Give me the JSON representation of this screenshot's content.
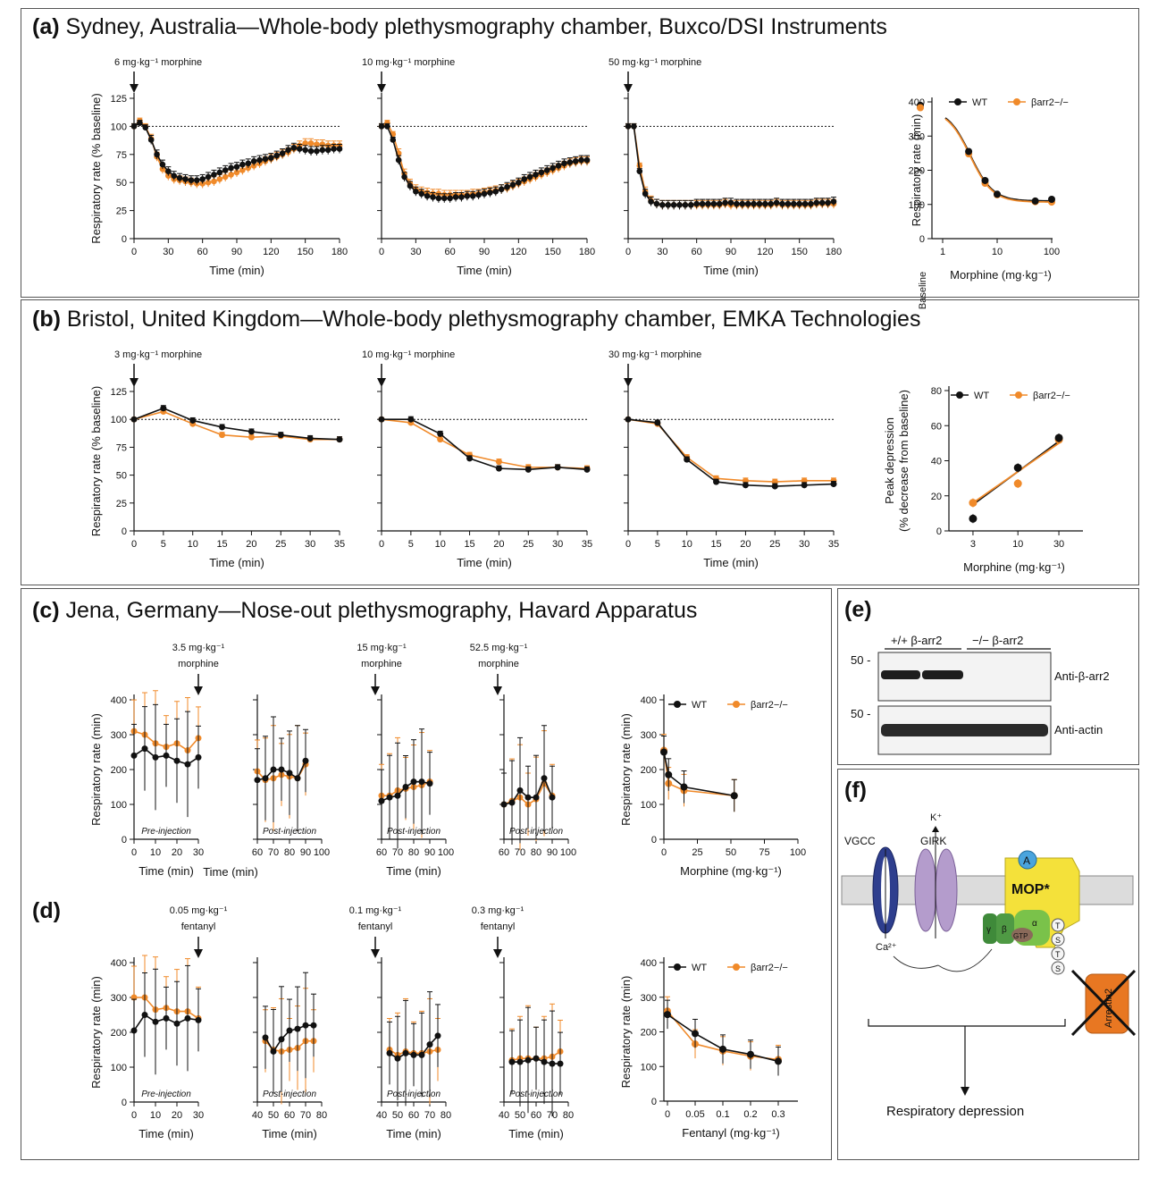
{
  "colors": {
    "wt": "#111111",
    "ko": "#f08a2a",
    "panel_border": "#555555"
  },
  "panels": {
    "a": {
      "letter": "(a)",
      "title": "Sydney, Australia—Whole-body plethysmography chamber, Buxco/DSI Instruments"
    },
    "b": {
      "letter": "(b)",
      "title": "Bristol, United Kingdom—Whole-body plethysmography chamber, EMKA Technologies"
    },
    "c": {
      "letter": "(c)",
      "title": "Jena, Germany—Nose-out plethysmography, Havard Apparatus"
    },
    "d": {
      "letter": "(d)",
      "title": ""
    },
    "e": {
      "letter": "(e)",
      "title": ""
    },
    "f": {
      "letter": "(f)",
      "title": ""
    }
  },
  "labels": {
    "resp_pct": "Respiratory rate (% baseline)",
    "resp_min": "Respiratory rate (min)",
    "time": "Time (min)",
    "peak": "Peak depression",
    "peak2": "(% decrease from baseline)",
    "morphine": "Morphine (mg·kg⁻¹)",
    "fentanyl": "Fentanyl (mg·kg⁻¹)",
    "baseline": "Baseline",
    "pre": "Pre-injection",
    "post": "Post-injection",
    "wt": "WT",
    "ko": "βarr2−/−"
  },
  "doses": {
    "a1": "6 mg·kg⁻¹ morphine",
    "a2": "10 mg·kg⁻¹ morphine",
    "a3": "50 mg·kg⁻¹ morphine",
    "b1": "3 mg·kg⁻¹ morphine",
    "b2": "10 mg·kg⁻¹ morphine",
    "b3": "30 mg·kg⁻¹ morphine",
    "c1a": "3.5 mg·kg⁻¹",
    "c1b": "morphine",
    "c2a": "15 mg·kg⁻¹",
    "c2b": "morphine",
    "c3a": "52.5 mg·kg⁻¹",
    "c3b": "morphine",
    "d1a": "0.05 mg·kg⁻¹",
    "d1b": "fentanyl",
    "d2a": "0.1 mg·kg⁻¹",
    "d2b": "fentanyl",
    "d3a": "0.3 mg·kg⁻¹",
    "d3b": "fentanyl"
  },
  "blot": {
    "group1": "+/+ β-arr2",
    "group2": "−/− β-arr2",
    "marker1": "50 -",
    "marker2": "50 -",
    "label1": "Anti-β-arr2",
    "label2": "Anti-actin"
  },
  "diagram": {
    "vgcc": "VGCC",
    "girk": "GIRK",
    "k": "K⁺",
    "ca": "Ca²⁺",
    "mop": "MOP*",
    "agonist": "A",
    "gamma": "γ",
    "beta": "β",
    "alpha": "α",
    "gtp": "GTP",
    "tsts": [
      "T",
      "S",
      "T",
      "S"
    ],
    "arrestin": "Arrestin2",
    "outcome": "Respiratory depression"
  },
  "chart_data": [
    {
      "id": "a1",
      "type": "line",
      "xlabel": "Time (min)",
      "ylabel": "Respiratory rate (% baseline)",
      "xlim": [
        0,
        180
      ],
      "ylim": [
        0,
        125
      ],
      "annotation": "6 mg·kg⁻¹ morphine",
      "x": [
        0,
        5,
        10,
        15,
        20,
        25,
        30,
        35,
        40,
        45,
        50,
        55,
        60,
        65,
        70,
        75,
        80,
        85,
        90,
        95,
        100,
        105,
        110,
        115,
        120,
        125,
        130,
        135,
        140,
        145,
        150,
        155,
        160,
        165,
        170,
        175,
        180
      ],
      "series": [
        {
          "name": "WT",
          "values": [
            100,
            103,
            99,
            88,
            75,
            66,
            60,
            56,
            54,
            53,
            52,
            52,
            53,
            55,
            57,
            59,
            61,
            63,
            64,
            66,
            67,
            69,
            70,
            71,
            72,
            74,
            76,
            79,
            81,
            80,
            79,
            78,
            78,
            79,
            79,
            80,
            80
          ]
        },
        {
          "name": "βarr2−/−",
          "values": [
            100,
            105,
            100,
            89,
            73,
            62,
            56,
            53,
            52,
            51,
            50,
            49,
            49,
            50,
            51,
            53,
            55,
            57,
            59,
            61,
            63,
            65,
            67,
            69,
            71,
            73,
            75,
            77,
            80,
            83,
            85,
            85,
            84,
            84,
            83,
            83,
            83
          ]
        }
      ]
    },
    {
      "id": "a2",
      "type": "line",
      "xlabel": "Time (min)",
      "xlim": [
        0,
        180
      ],
      "ylim": [
        0,
        125
      ],
      "annotation": "10 mg·kg⁻¹ morphine",
      "x": [
        0,
        5,
        10,
        15,
        20,
        25,
        30,
        35,
        40,
        45,
        50,
        55,
        60,
        65,
        70,
        75,
        80,
        85,
        90,
        95,
        100,
        105,
        110,
        115,
        120,
        125,
        130,
        135,
        140,
        145,
        150,
        155,
        160,
        165,
        170,
        175,
        180
      ],
      "series": [
        {
          "name": "WT",
          "values": [
            100,
            100,
            88,
            70,
            55,
            47,
            42,
            40,
            38,
            37,
            36,
            36,
            36,
            37,
            37,
            38,
            38,
            39,
            40,
            41,
            42,
            44,
            46,
            48,
            50,
            53,
            55,
            57,
            59,
            61,
            63,
            65,
            67,
            68,
            69,
            70,
            70
          ]
        },
        {
          "name": "βarr2−/−",
          "values": [
            100,
            103,
            93,
            76,
            58,
            49,
            44,
            42,
            41,
            40,
            40,
            39,
            39,
            39,
            39,
            39,
            40,
            40,
            41,
            42,
            43,
            44,
            45,
            47,
            49,
            51,
            53,
            55,
            57,
            59,
            61,
            63,
            65,
            67,
            68,
            69,
            69
          ]
        }
      ]
    },
    {
      "id": "a3",
      "type": "line",
      "xlabel": "Time (min)",
      "xlim": [
        0,
        180
      ],
      "ylim": [
        0,
        125
      ],
      "annotation": "50 mg·kg⁻¹ morphine",
      "x": [
        0,
        5,
        10,
        15,
        20,
        25,
        30,
        35,
        40,
        45,
        50,
        55,
        60,
        65,
        70,
        75,
        80,
        85,
        90,
        95,
        100,
        105,
        110,
        115,
        120,
        125,
        130,
        135,
        140,
        145,
        150,
        155,
        160,
        165,
        170,
        175,
        180
      ],
      "series": [
        {
          "name": "WT",
          "values": [
            100,
            100,
            60,
            40,
            33,
            31,
            30,
            30,
            30,
            30,
            30,
            30,
            31,
            31,
            31,
            31,
            31,
            32,
            32,
            31,
            31,
            31,
            31,
            31,
            31,
            31,
            32,
            31,
            31,
            31,
            31,
            31,
            31,
            32,
            32,
            32,
            33
          ]
        },
        {
          "name": "βarr2−/−",
          "values": [
            100,
            100,
            65,
            42,
            34,
            31,
            30,
            30,
            30,
            30,
            30,
            30,
            30,
            30,
            30,
            30,
            30,
            31,
            30,
            30,
            30,
            30,
            30,
            30,
            30,
            30,
            31,
            30,
            30,
            30,
            30,
            30,
            30,
            31,
            31,
            31,
            31
          ]
        }
      ]
    },
    {
      "id": "a4",
      "type": "scatter",
      "xlabel": "Morphine (mg·kg⁻¹)",
      "ylabel": "Respiratory rate (min)",
      "xscale": "log",
      "xlim": [
        1,
        100
      ],
      "ylim": [
        0,
        400
      ],
      "legend": "top",
      "baseline": {
        "WT": 390,
        "βarr2−/−": 383
      },
      "x": [
        3,
        6,
        10,
        50,
        100
      ],
      "series": [
        {
          "name": "WT",
          "values": [
            255,
            170,
            130,
            110,
            115
          ]
        },
        {
          "name": "βarr2−/−",
          "values": [
            248,
            162,
            128,
            108,
            107
          ]
        }
      ]
    },
    {
      "id": "b1",
      "type": "line",
      "xlabel": "Time (min)",
      "ylabel": "Respiratory rate (% baseline)",
      "xlim": [
        0,
        35
      ],
      "ylim": [
        0,
        125
      ],
      "annotation": "3 mg·kg⁻¹ morphine",
      "x": [
        0,
        5,
        10,
        15,
        20,
        25,
        30,
        35
      ],
      "series": [
        {
          "name": "WT",
          "values": [
            100,
            110,
            99,
            93,
            89,
            86,
            83,
            82
          ]
        },
        {
          "name": "βarr2−/−",
          "values": [
            100,
            107,
            96,
            86,
            84,
            85,
            82,
            82
          ]
        }
      ]
    },
    {
      "id": "b2",
      "type": "line",
      "xlabel": "Time (min)",
      "xlim": [
        0,
        35
      ],
      "ylim": [
        0,
        125
      ],
      "annotation": "10 mg·kg⁻¹ morphine",
      "x": [
        0,
        5,
        10,
        15,
        20,
        25,
        30,
        35
      ],
      "series": [
        {
          "name": "WT",
          "values": [
            100,
            100,
            87,
            65,
            56,
            55,
            57,
            55
          ]
        },
        {
          "name": "βarr2−/−",
          "values": [
            100,
            97,
            82,
            68,
            62,
            57,
            57,
            56
          ]
        }
      ]
    },
    {
      "id": "b3",
      "type": "line",
      "xlabel": "Time (min)",
      "xlim": [
        0,
        35
      ],
      "ylim": [
        0,
        125
      ],
      "annotation": "30 mg·kg⁻¹ morphine",
      "x": [
        0,
        5,
        10,
        15,
        20,
        25,
        30,
        35
      ],
      "series": [
        {
          "name": "WT",
          "values": [
            100,
            97,
            64,
            44,
            41,
            40,
            41,
            42
          ]
        },
        {
          "name": "βarr2−/−",
          "values": [
            100,
            96,
            66,
            47,
            45,
            44,
            45,
            45
          ]
        }
      ]
    },
    {
      "id": "b4",
      "type": "scatter",
      "xlabel": "Morphine (mg·kg⁻¹)",
      "ylabel": "Peak depression (% decrease from baseline)",
      "xscale": "log",
      "xticks": [
        3,
        10,
        30
      ],
      "ylim": [
        0,
        80
      ],
      "legend": "top",
      "x": [
        3,
        10,
        30
      ],
      "series": [
        {
          "name": "WT",
          "values": [
            7,
            36,
            53
          ]
        },
        {
          "name": "βarr2−/−",
          "values": [
            16,
            27,
            52
          ]
        }
      ]
    },
    {
      "id": "c1",
      "type": "line",
      "ylabel": "Respiratory rate (min)",
      "xlabel": "Time (min)",
      "xlim": [
        0,
        30
      ],
      "ylim": [
        0,
        400
      ],
      "note": "Pre-injection",
      "x": [
        0,
        5,
        10,
        15,
        20,
        25,
        30
      ],
      "series": [
        {
          "name": "WT",
          "values": [
            240,
            260,
            235,
            240,
            225,
            215,
            235
          ]
        },
        {
          "name": "βarr2−/−",
          "values": [
            310,
            300,
            275,
            265,
            275,
            255,
            290
          ]
        }
      ]
    },
    {
      "id": "c2",
      "type": "line",
      "xlim": [
        60,
        100
      ],
      "ylim": [
        0,
        400
      ],
      "note": "Post-injection",
      "x": [
        60,
        65,
        70,
        75,
        80,
        85,
        90
      ],
      "series": [
        {
          "name": "WT",
          "values": [
            170,
            175,
            200,
            200,
            190,
            175,
            225
          ]
        },
        {
          "name": "βarr2−/−",
          "values": [
            195,
            170,
            175,
            185,
            180,
            175,
            215
          ]
        }
      ]
    },
    {
      "id": "c3",
      "type": "line",
      "xlabel": "Time (min)",
      "xlim": [
        60,
        100
      ],
      "ylim": [
        0,
        400
      ],
      "note": "Post-injection",
      "x": [
        60,
        65,
        70,
        75,
        80,
        85,
        90
      ],
      "series": [
        {
          "name": "WT",
          "values": [
            110,
            120,
            125,
            150,
            165,
            165,
            160
          ]
        },
        {
          "name": "βarr2−/−",
          "values": [
            125,
            125,
            140,
            145,
            150,
            155,
            165
          ]
        }
      ]
    },
    {
      "id": "c4",
      "type": "line",
      "xlim": [
        60,
        100
      ],
      "ylim": [
        0,
        400
      ],
      "note": "Post-injection",
      "x": [
        60,
        65,
        70,
        75,
        80,
        85,
        90
      ],
      "series": [
        {
          "name": "WT",
          "values": [
            100,
            105,
            140,
            120,
            120,
            175,
            120
          ]
        },
        {
          "name": "βarr2−/−",
          "values": [
            100,
            110,
            120,
            100,
            115,
            160,
            125
          ]
        }
      ]
    },
    {
      "id": "c5",
      "type": "line",
      "xlabel": "Morphine (mg·kg⁻¹)",
      "ylabel": "Respiratory rate (min)",
      "xlim": [
        0,
        100
      ],
      "ylim": [
        0,
        400
      ],
      "legend": "top",
      "x": [
        0,
        3.5,
        15,
        52.5
      ],
      "series": [
        {
          "name": "WT",
          "values": [
            250,
            185,
            150,
            125
          ]
        },
        {
          "name": "βarr2−/−",
          "values": [
            255,
            160,
            140,
            125
          ]
        }
      ]
    },
    {
      "id": "d1",
      "type": "line",
      "ylabel": "Respiratory rate (min)",
      "xlabel": "Time (min)",
      "xlim": [
        0,
        30
      ],
      "ylim": [
        0,
        400
      ],
      "note": "Pre-injection",
      "x": [
        0,
        5,
        10,
        15,
        20,
        25,
        30
      ],
      "series": [
        {
          "name": "WT",
          "values": [
            205,
            250,
            230,
            240,
            225,
            240,
            235
          ]
        },
        {
          "name": "βarr2−/−",
          "values": [
            300,
            300,
            265,
            270,
            260,
            260,
            240
          ]
        }
      ]
    },
    {
      "id": "d2",
      "type": "line",
      "xlabel": "Time (min)",
      "xlim": [
        40,
        80
      ],
      "ylim": [
        0,
        400
      ],
      "note": "Post-injection",
      "x": [
        45,
        50,
        55,
        60,
        65,
        70,
        75
      ],
      "series": [
        {
          "name": "WT",
          "values": [
            185,
            145,
            180,
            205,
            210,
            220,
            220
          ]
        },
        {
          "name": "βarr2−/−",
          "values": [
            175,
            150,
            145,
            150,
            155,
            175,
            175
          ]
        }
      ]
    },
    {
      "id": "d3",
      "type": "line",
      "xlabel": "Time (min)",
      "xlim": [
        40,
        80
      ],
      "ylim": [
        0,
        400
      ],
      "note": "Post-injection",
      "x": [
        45,
        50,
        55,
        60,
        65,
        70,
        75
      ],
      "series": [
        {
          "name": "WT",
          "values": [
            140,
            125,
            140,
            135,
            135,
            165,
            190
          ]
        },
        {
          "name": "βarr2−/−",
          "values": [
            150,
            135,
            145,
            140,
            140,
            145,
            150
          ]
        }
      ]
    },
    {
      "id": "d4",
      "type": "line",
      "xlabel": "Time (min)",
      "xlim": [
        40,
        80
      ],
      "ylim": [
        0,
        400
      ],
      "note": "Post-injection",
      "x": [
        45,
        50,
        55,
        60,
        65,
        70,
        75
      ],
      "series": [
        {
          "name": "WT",
          "values": [
            115,
            115,
            120,
            125,
            115,
            110,
            110
          ]
        },
        {
          "name": "βarr2−/−",
          "values": [
            120,
            125,
            125,
            125,
            125,
            130,
            145
          ]
        }
      ]
    },
    {
      "id": "d5",
      "type": "line",
      "xlabel": "Fentanyl (mg·kg⁻¹)",
      "ylabel": "Respiratory rate (min)",
      "xticks": [
        "0",
        "0.05",
        "0.1",
        "0.2",
        "0.3"
      ],
      "ylim": [
        0,
        400
      ],
      "legend": "top",
      "x": [
        0,
        0.05,
        0.1,
        0.2,
        0.3
      ],
      "series": [
        {
          "name": "WT",
          "values": [
            250,
            195,
            150,
            135,
            115
          ]
        },
        {
          "name": "βarr2−/−",
          "values": [
            260,
            165,
            145,
            130,
            120
          ]
        }
      ]
    }
  ]
}
